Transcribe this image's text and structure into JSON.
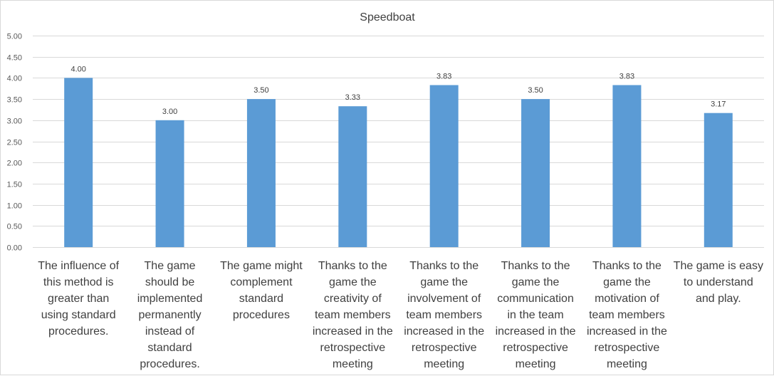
{
  "chart_data": {
    "type": "bar",
    "title": "Speedboat",
    "xlabel": "",
    "ylabel": "",
    "ylim": [
      0,
      5
    ],
    "y_ticks": [
      "0.00",
      "0.50",
      "1.00",
      "1.50",
      "2.00",
      "2.50",
      "3.00",
      "3.50",
      "4.00",
      "4.50",
      "5.00"
    ],
    "grid": true,
    "bar_color": "#5b9bd5",
    "categories": [
      [
        "The influence of",
        "this method is",
        "greater than",
        "using standard",
        "procedures."
      ],
      [
        "The game",
        "should be",
        "implemented",
        "permanently",
        "instead of",
        "standard",
        "procedures."
      ],
      [
        "The game might",
        "complement",
        "standard",
        "procedures"
      ],
      [
        "Thanks to the",
        "game the",
        "creativity of",
        "team members",
        "increased in the",
        "retrospective",
        "meeting"
      ],
      [
        "Thanks to the",
        "game the",
        "involvement of",
        "team members",
        "increased in the",
        "retrospective",
        "meeting"
      ],
      [
        "Thanks to the",
        "game the",
        "communication",
        "in the team",
        "increased in the",
        "retrospective",
        "meeting"
      ],
      [
        "Thanks to the",
        "game the",
        "motivation of",
        "team members",
        "increased in the",
        "retrospective",
        "meeting"
      ],
      [
        "The game is easy",
        "to understand",
        "and play."
      ]
    ],
    "values": [
      4.0,
      3.0,
      3.5,
      3.33,
      3.83,
      3.5,
      3.83,
      3.17
    ],
    "data_labels": [
      "4.00",
      "3.00",
      "3.50",
      "3.33",
      "3.83",
      "3.50",
      "3.83",
      "3.17"
    ]
  }
}
